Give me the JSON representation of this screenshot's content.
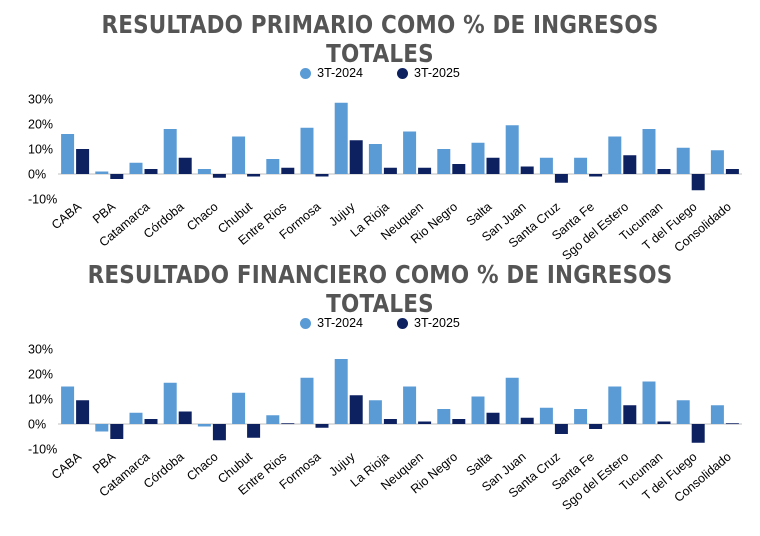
{
  "colors": {
    "series_2024": "#5b9bd5",
    "series_2025": "#0d2160",
    "axis": "#bfbfbf",
    "title": "#555555"
  },
  "chart_data": [
    {
      "type": "bar",
      "title": "RESULTADO PRIMARIO COMO % DE INGRESOS TOTALES",
      "legend_position": "top-center",
      "categories": [
        "CABA",
        "PBA",
        "Catamarca",
        "Córdoba",
        "Chaco",
        "Chubut",
        "Entre Rios",
        "Formosa",
        "Jujuy",
        "La Rioja",
        "Neuquen",
        "Rio Negro",
        "Salta",
        "San Juan",
        "Santa Cruz",
        "Santa Fe",
        "Sgo del Estero",
        "Tucuman",
        "T del Fuego",
        "Consolidado"
      ],
      "series": [
        {
          "name": "3T-2024",
          "values": [
            16,
            1,
            4.5,
            18,
            2,
            15,
            6,
            18.5,
            28.5,
            12,
            17,
            10,
            12.5,
            19.5,
            6.5,
            6.5,
            15,
            18,
            10.5,
            9.5
          ]
        },
        {
          "name": "3T-2025",
          "values": [
            10,
            -2,
            2,
            6.5,
            -1.5,
            -1,
            2.5,
            -1,
            13.5,
            2.5,
            2.5,
            4,
            6.5,
            3,
            -3.5,
            -1,
            7.5,
            2,
            -6.5,
            2
          ]
        }
      ],
      "ylim": [
        -10,
        30
      ],
      "yticks": [
        -10,
        0,
        10,
        20,
        30
      ],
      "ytick_labels": [
        "-10%",
        "0%",
        "10%",
        "20%",
        "30%"
      ],
      "xlabel": "",
      "ylabel": "",
      "grid": false
    },
    {
      "type": "bar",
      "title": "RESULTADO FINANCIERO COMO % DE INGRESOS TOTALES",
      "legend_position": "top-center",
      "categories": [
        "CABA",
        "PBA",
        "Catamarca",
        "Córdoba",
        "Chaco",
        "Chubut",
        "Entre Rios",
        "Formosa",
        "Jujuy",
        "La Rioja",
        "Neuquen",
        "Rio Negro",
        "Salta",
        "San Juan",
        "Santa Cruz",
        "Santa Fe",
        "Sgo del Estero",
        "Tucuman",
        "T del Fuego",
        "Consolidado"
      ],
      "series": [
        {
          "name": "3T-2024",
          "values": [
            15,
            -3,
            4.5,
            16.5,
            -1,
            12.5,
            3.5,
            18.5,
            26,
            9.5,
            15,
            6,
            11,
            18.5,
            6.5,
            6,
            15,
            17,
            9.5,
            7.5
          ]
        },
        {
          "name": "3T-2025",
          "values": [
            9.5,
            -6,
            2,
            5,
            -6.5,
            -5.5,
            0.3,
            -1.5,
            11.5,
            2,
            1,
            2,
            4.5,
            2.5,
            -4,
            -2,
            7.5,
            1,
            -7.5,
            0.3
          ]
        }
      ],
      "ylim": [
        -10,
        30
      ],
      "yticks": [
        -10,
        0,
        10,
        20,
        30
      ],
      "ytick_labels": [
        "-10%",
        "0%",
        "10%",
        "20%",
        "30%"
      ],
      "xlabel": "",
      "ylabel": "",
      "grid": false
    }
  ]
}
